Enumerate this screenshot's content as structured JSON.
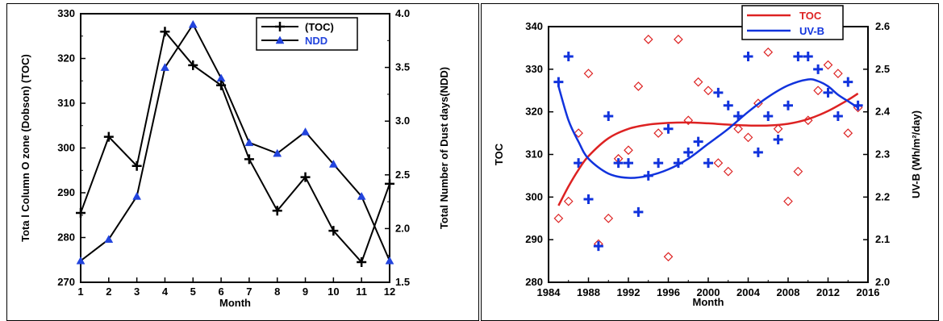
{
  "chart_data": [
    {
      "type": "line",
      "title": "",
      "xlabel": "Month",
      "ylabel": "Tota l Column O zone (Dobson) (TOC)",
      "y2label": "Total Number of Dust days(NDD)",
      "x": [
        1,
        2,
        3,
        4,
        5,
        6,
        7,
        8,
        9,
        10,
        11,
        12
      ],
      "xticks": [
        "1",
        "2",
        "3",
        "4",
        "5",
        "6",
        "7",
        "8",
        "9",
        "10",
        "11",
        "12"
      ],
      "xlim": [
        1,
        12
      ],
      "ylim": [
        270,
        330
      ],
      "yticks": [
        "270",
        "280",
        "290",
        "300",
        "310",
        "320",
        "330"
      ],
      "y2lim": [
        1.5,
        4.0
      ],
      "y2ticks": [
        "1.5",
        "2.0",
        "2.5",
        "3.0",
        "3.5",
        "4.0"
      ],
      "legend_position": "top-center",
      "grid": false,
      "series": [
        {
          "name": "(TOC)",
          "axis": "left",
          "marker": "plus",
          "color": "#000000",
          "values": [
            285.5,
            302.5,
            296,
            326,
            318.5,
            314,
            297.5,
            286,
            293.5,
            281.5,
            274.5,
            292
          ]
        },
        {
          "name": "NDD",
          "axis": "right",
          "marker": "triangle",
          "color": "#000000",
          "marker_color": "#2244dd",
          "values": [
            1.7,
            1.9,
            2.3,
            3.5,
            3.9,
            3.4,
            2.8,
            2.7,
            2.9,
            2.6,
            2.3,
            1.7
          ]
        }
      ]
    },
    {
      "type": "scatter",
      "title": "",
      "xlabel": "Month",
      "ylabel": "TOC",
      "y2label": "UV-B (Wh/m²/day)",
      "xlim": [
        1984,
        2016
      ],
      "xticks": [
        "1984",
        "1988",
        "1992",
        "1996",
        "2000",
        "2004",
        "2008",
        "2012",
        "2016"
      ],
      "ylim": [
        280,
        340
      ],
      "yticks": [
        "280",
        "290",
        "300",
        "310",
        "320",
        "330",
        "340"
      ],
      "y2lim": [
        2.0,
        2.6
      ],
      "y2ticks": [
        "2.0",
        "2.1",
        "2.2",
        "2.3",
        "2.4",
        "2.5",
        "2.6"
      ],
      "legend_position": "top-center",
      "grid": false,
      "series": [
        {
          "name": "TOC",
          "axis": "left",
          "marker": "diamond",
          "color": "#dd2222",
          "points": [
            [
              1985,
              295
            ],
            [
              1986,
              299
            ],
            [
              1987,
              315
            ],
            [
              1988,
              329
            ],
            [
              1989,
              289
            ],
            [
              1990,
              295
            ],
            [
              1991,
              309
            ],
            [
              1992,
              311
            ],
            [
              1993,
              326
            ],
            [
              1994,
              337
            ],
            [
              1995,
              315
            ],
            [
              1996,
              286
            ],
            [
              1997,
              337
            ],
            [
              1998,
              318
            ],
            [
              1999,
              327
            ],
            [
              2000,
              325
            ],
            [
              2001,
              308
            ],
            [
              2002,
              306
            ],
            [
              2003,
              316
            ],
            [
              2004,
              314
            ],
            [
              2005,
              322
            ],
            [
              2006,
              334
            ],
            [
              2007,
              316
            ],
            [
              2008,
              299
            ],
            [
              2009,
              306
            ],
            [
              2010,
              318
            ],
            [
              2011,
              325
            ],
            [
              2012,
              331
            ],
            [
              2013,
              329
            ],
            [
              2014,
              315
            ],
            [
              2015,
              321
            ]
          ],
          "fit": [
            [
              1985,
              298
            ],
            [
              1986,
              302.5
            ],
            [
              1987,
              306.4
            ],
            [
              1988,
              309.6
            ],
            [
              1990,
              313.8
            ],
            [
              1992,
              316
            ],
            [
              1994,
              317
            ],
            [
              1996,
              317.4
            ],
            [
              1998,
              317.5
            ],
            [
              2000,
              317.3
            ],
            [
              2002,
              317
            ],
            [
              2004,
              316.8
            ],
            [
              2006,
              316.8
            ],
            [
              2008,
              317.2
            ],
            [
              2010,
              318.3
            ],
            [
              2012,
              320.2
            ],
            [
              2014,
              322.8
            ],
            [
              2015,
              324.3
            ]
          ]
        },
        {
          "name": "UV-B",
          "axis": "right",
          "marker": "plus",
          "color": "#1133dd",
          "points": [
            [
              1985,
              2.47
            ],
            [
              1986,
              2.53
            ],
            [
              1987,
              2.28
            ],
            [
              1988,
              2.195
            ],
            [
              1989,
              2.085
            ],
            [
              1990,
              2.39
            ],
            [
              1991,
              2.28
            ],
            [
              1992,
              2.28
            ],
            [
              1993,
              2.165
            ],
            [
              1994,
              2.25
            ],
            [
              1995,
              2.28
            ],
            [
              1996,
              2.36
            ],
            [
              1997,
              2.28
            ],
            [
              1998,
              2.305
            ],
            [
              1999,
              2.33
            ],
            [
              2000,
              2.28
            ],
            [
              2001,
              2.445
            ],
            [
              2002,
              2.415
            ],
            [
              2003,
              2.39
            ],
            [
              2004,
              2.53
            ],
            [
              2005,
              2.305
            ],
            [
              2006,
              2.39
            ],
            [
              2007,
              2.335
            ],
            [
              2008,
              2.415
            ],
            [
              2009,
              2.53
            ],
            [
              2010,
              2.53
            ],
            [
              2011,
              2.5
            ],
            [
              2012,
              2.445
            ],
            [
              2013,
              2.39
            ],
            [
              2014,
              2.47
            ],
            [
              2015,
              2.415
            ]
          ],
          "fit": [
            [
              1985,
              2.46
            ],
            [
              1986,
              2.38
            ],
            [
              1987,
              2.33
            ],
            [
              1988,
              2.29
            ],
            [
              1990,
              2.255
            ],
            [
              1992,
              2.245
            ],
            [
              1994,
              2.25
            ],
            [
              1996,
              2.265
            ],
            [
              1998,
              2.29
            ],
            [
              2000,
              2.325
            ],
            [
              2002,
              2.36
            ],
            [
              2004,
              2.4
            ],
            [
              2006,
              2.435
            ],
            [
              2008,
              2.462
            ],
            [
              2010,
              2.476
            ],
            [
              2011,
              2.472
            ],
            [
              2012,
              2.46
            ],
            [
              2013,
              2.44
            ],
            [
              2014,
              2.425
            ],
            [
              2015,
              2.41
            ]
          ]
        }
      ]
    }
  ]
}
